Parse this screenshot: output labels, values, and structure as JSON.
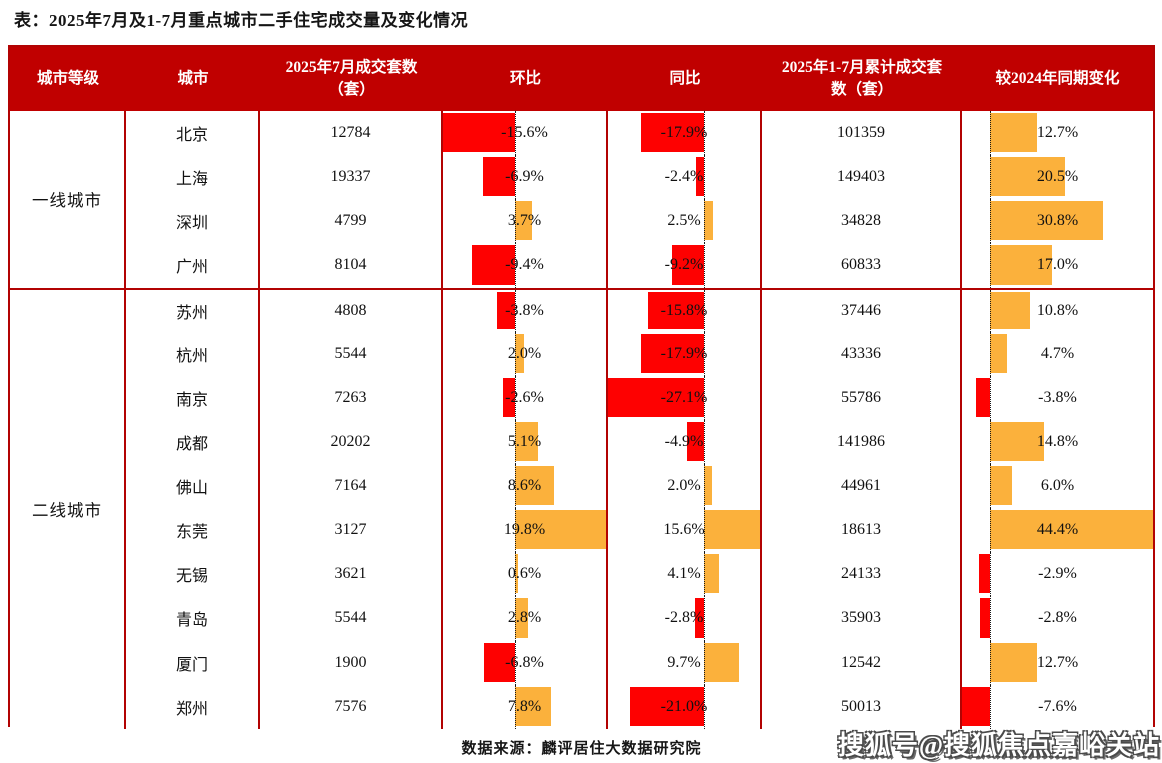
{
  "title": "表：2025年7月及1-7月重点城市二手住宅成交量及变化情况",
  "header": {
    "tier": "城市等级",
    "city": "城市",
    "jul_count": "2025年7月成交套数（套）",
    "mom": "环比",
    "yoy": "同比",
    "cum_count": "2025年1-7月累计成交套数（套）",
    "vs_2024": "较2024年同期变化"
  },
  "chart_data": {
    "type": "table",
    "title": "2025年7月及1-7月重点城市二手住宅成交量及变化情况",
    "columns": [
      "城市等级",
      "城市",
      "2025年7月成交套数（套）",
      "环比",
      "同比",
      "2025年1-7月累计成交套数（套）",
      "较2024年同期变化"
    ],
    "bar_columns": [
      {
        "field": "mom_pct",
        "label": "环比",
        "axis_min": -15.6,
        "axis_max": 19.8,
        "negative_color": "#FE0101",
        "positive_color": "#FBB13C"
      },
      {
        "field": "yoy_pct",
        "label": "同比",
        "axis_min": -27.1,
        "axis_max": 15.6,
        "negative_color": "#FE0101",
        "positive_color": "#FBB13C"
      },
      {
        "field": "vs2024_pct",
        "label": "较2024年同期变化",
        "axis_min": -7.6,
        "axis_max": 44.4,
        "negative_color": "#FE0101",
        "positive_color": "#FBB13C"
      }
    ],
    "groups": [
      {
        "tier": "一线城市",
        "rows": [
          {
            "city": "北京",
            "jul_count": 12784,
            "mom_pct": -15.6,
            "yoy_pct": -17.9,
            "cum_count": 101359,
            "vs2024_pct": 12.7
          },
          {
            "city": "上海",
            "jul_count": 19337,
            "mom_pct": -6.9,
            "yoy_pct": -2.4,
            "cum_count": 149403,
            "vs2024_pct": 20.5
          },
          {
            "city": "深圳",
            "jul_count": 4799,
            "mom_pct": 3.7,
            "yoy_pct": 2.5,
            "cum_count": 34828,
            "vs2024_pct": 30.8
          },
          {
            "city": "广州",
            "jul_count": 8104,
            "mom_pct": -9.4,
            "yoy_pct": -9.2,
            "cum_count": 60833,
            "vs2024_pct": 17.0
          }
        ]
      },
      {
        "tier": "二线城市",
        "rows": [
          {
            "city": "苏州",
            "jul_count": 4808,
            "mom_pct": -3.8,
            "yoy_pct": -15.8,
            "cum_count": 37446,
            "vs2024_pct": 10.8
          },
          {
            "city": "杭州",
            "jul_count": 5544,
            "mom_pct": 2.0,
            "yoy_pct": -17.9,
            "cum_count": 43336,
            "vs2024_pct": 4.7
          },
          {
            "city": "南京",
            "jul_count": 7263,
            "mom_pct": -2.6,
            "yoy_pct": -27.1,
            "cum_count": 55786,
            "vs2024_pct": -3.8
          },
          {
            "city": "成都",
            "jul_count": 20202,
            "mom_pct": 5.1,
            "yoy_pct": -4.9,
            "cum_count": 141986,
            "vs2024_pct": 14.8
          },
          {
            "city": "佛山",
            "jul_count": 7164,
            "mom_pct": 8.6,
            "yoy_pct": 2.0,
            "cum_count": 44961,
            "vs2024_pct": 6.0
          },
          {
            "city": "东莞",
            "jul_count": 3127,
            "mom_pct": 19.8,
            "yoy_pct": 15.6,
            "cum_count": 18613,
            "vs2024_pct": 44.4
          },
          {
            "city": "无锡",
            "jul_count": 3621,
            "mom_pct": 0.6,
            "yoy_pct": 4.1,
            "cum_count": 24133,
            "vs2024_pct": -2.9
          },
          {
            "city": "青岛",
            "jul_count": 5544,
            "mom_pct": 2.8,
            "yoy_pct": -2.8,
            "cum_count": 35903,
            "vs2024_pct": -2.8
          },
          {
            "city": "厦门",
            "jul_count": 1900,
            "mom_pct": -6.8,
            "yoy_pct": 9.7,
            "cum_count": 12542,
            "vs2024_pct": 12.7
          },
          {
            "city": "郑州",
            "jul_count": 7576,
            "mom_pct": 7.8,
            "yoy_pct": -21.0,
            "cum_count": 50013,
            "vs2024_pct": -7.6
          }
        ]
      }
    ]
  },
  "footer": {
    "source": "数据来源：麟评居住大数据研究院",
    "watermark": "搜狐号@搜狐焦点嘉峪关站"
  },
  "colors": {
    "header_bg": "#C00000",
    "grid_border": "#B20303",
    "negative_bar": "#FE0101",
    "positive_bar": "#FBB13C"
  }
}
